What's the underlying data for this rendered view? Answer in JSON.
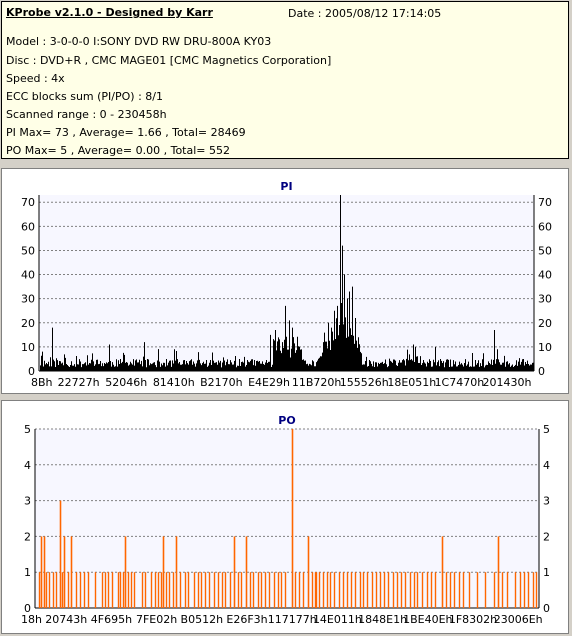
{
  "header": {
    "title": "KProbe v2.1.0 - Designed by Karr",
    "date": "Date : 2005/08/12 17:14:05",
    "lines": [
      "Model : 3-0-0-0 I:SONY      DVD RW DRU-800A  KY03",
      "Disc : DVD+R , CMC MAGE01 [CMC Magnetics Corporation]",
      "Speed : 4x",
      "ECC blocks sum (PI/PO) : 8/1",
      "Scanned range : 0 - 230458h",
      "PI Max= 73 , Average= 1.66 , Total= 28469",
      "PO Max= 5 , Average= 0.00 , Total= 552"
    ]
  },
  "chart_data": [
    {
      "type": "bar",
      "title": "PI",
      "ylim": [
        0,
        73
      ],
      "yticks": [
        0,
        10,
        20,
        30,
        40,
        50,
        60,
        70
      ],
      "xlim": [
        0,
        230458
      ],
      "xtick_labels": [
        "8Bh",
        "22727h",
        "52046h",
        "81410h",
        "B2170h",
        "E4E29h",
        "11B720h",
        "155526h",
        "18E051h",
        "1C7470h",
        "201430h"
      ],
      "grid": true,
      "color": "#000000",
      "features": [
        {
          "x": 2.5,
          "h": 18
        },
        {
          "x": 14,
          "h": 11
        },
        {
          "x": 21,
          "h": 12
        },
        {
          "x": 46.5,
          "h": 15
        },
        {
          "x": 49,
          "h": 12
        },
        {
          "x": 49.5,
          "h": 27
        },
        {
          "x": 50.5,
          "h": 21
        },
        {
          "x": 51,
          "h": 18
        },
        {
          "x": 52.5,
          "h": 10
        },
        {
          "x": 58.4,
          "h": 20
        },
        {
          "x": 59,
          "h": 18
        },
        {
          "x": 59.6,
          "h": 25
        },
        {
          "x": 60.1,
          "h": 27
        },
        {
          "x": 60.7,
          "h": 73
        },
        {
          "x": 61.2,
          "h": 52
        },
        {
          "x": 61.6,
          "h": 40
        },
        {
          "x": 62.1,
          "h": 30
        },
        {
          "x": 62.6,
          "h": 33
        },
        {
          "x": 63.2,
          "h": 35
        },
        {
          "x": 63.7,
          "h": 22
        },
        {
          "x": 64.3,
          "h": 14
        },
        {
          "x": 75.5,
          "h": 11
        },
        {
          "x": 76,
          "h": 10
        },
        {
          "x": 80,
          "h": 10
        },
        {
          "x": 92,
          "h": 17
        },
        {
          "x": 92.5,
          "h": 9
        }
      ]
    },
    {
      "type": "bar",
      "title": "PO",
      "ylim": [
        0,
        5
      ],
      "yticks": [
        0,
        1,
        2,
        3,
        4,
        5
      ],
      "xlim": [
        0,
        230458
      ],
      "xtick_labels": [
        "18h",
        "20743h",
        "4F695h",
        "7FE02h",
        "B0512h",
        "E26F3h",
        "117177h",
        "14E011h",
        "1848E1h",
        "1BE40Eh",
        "1F8302h",
        "23006Eh"
      ],
      "grid": true,
      "color": "#ff6600",
      "spikes": [
        {
          "x": 0.8,
          "h": 2
        },
        {
          "x": 1.3,
          "h": 2
        },
        {
          "x": 4.5,
          "h": 3
        },
        {
          "x": 5.4,
          "h": 2
        },
        {
          "x": 6.8,
          "h": 2
        },
        {
          "x": 17.5,
          "h": 2
        },
        {
          "x": 25.2,
          "h": 2
        },
        {
          "x": 27.9,
          "h": 2
        },
        {
          "x": 39.4,
          "h": 2
        },
        {
          "x": 41.8,
          "h": 2
        },
        {
          "x": 50.9,
          "h": 5
        },
        {
          "x": 54.2,
          "h": 2
        },
        {
          "x": 80.9,
          "h": 2
        },
        {
          "x": 92.2,
          "h": 2
        }
      ],
      "ones_x": [
        0.3,
        1.8,
        2.3,
        3.2,
        3.7,
        4.9,
        6.1,
        7.7,
        8.5,
        9.3,
        10.1,
        11.6,
        12.9,
        13.6,
        14.2,
        15,
        16.2,
        16.7,
        17.2,
        18.1,
        18.8,
        19.4,
        21,
        21.6,
        22.8,
        23.5,
        24.1,
        24.7,
        25.7,
        26.3,
        27.2,
        28.6,
        29.5,
        30.1,
        31.4,
        32.2,
        32.9,
        33.5,
        34.3,
        35.4,
        36.2,
        37,
        37.6,
        38.5,
        40.2,
        40.8,
        42.5,
        43.2,
        44.1,
        44.8,
        45.6,
        46.4,
        47.3,
        48.1,
        48.8,
        49.6,
        51.6,
        52.3,
        53.1,
        55,
        55.5,
        55.9,
        56.3,
        57.1,
        57.9,
        58.6,
        59.4,
        60.3,
        61.1,
        61.9,
        62.8,
        63.6,
        64.5,
        65.2,
        66,
        66.9,
        67.8,
        68.5,
        69.3,
        70.2,
        71.1,
        71.9,
        72.8,
        73.6,
        74.5,
        75.3,
        76.1,
        76.9,
        77.9,
        78.8,
        79.6,
        81.7,
        82.6,
        83.4,
        84.3,
        85.1,
        86.4,
        88.1,
        89.6,
        91.4,
        93,
        93.9,
        95.6,
        96.5,
        97.3,
        98.2,
        99.1,
        99.7
      ]
    }
  ]
}
